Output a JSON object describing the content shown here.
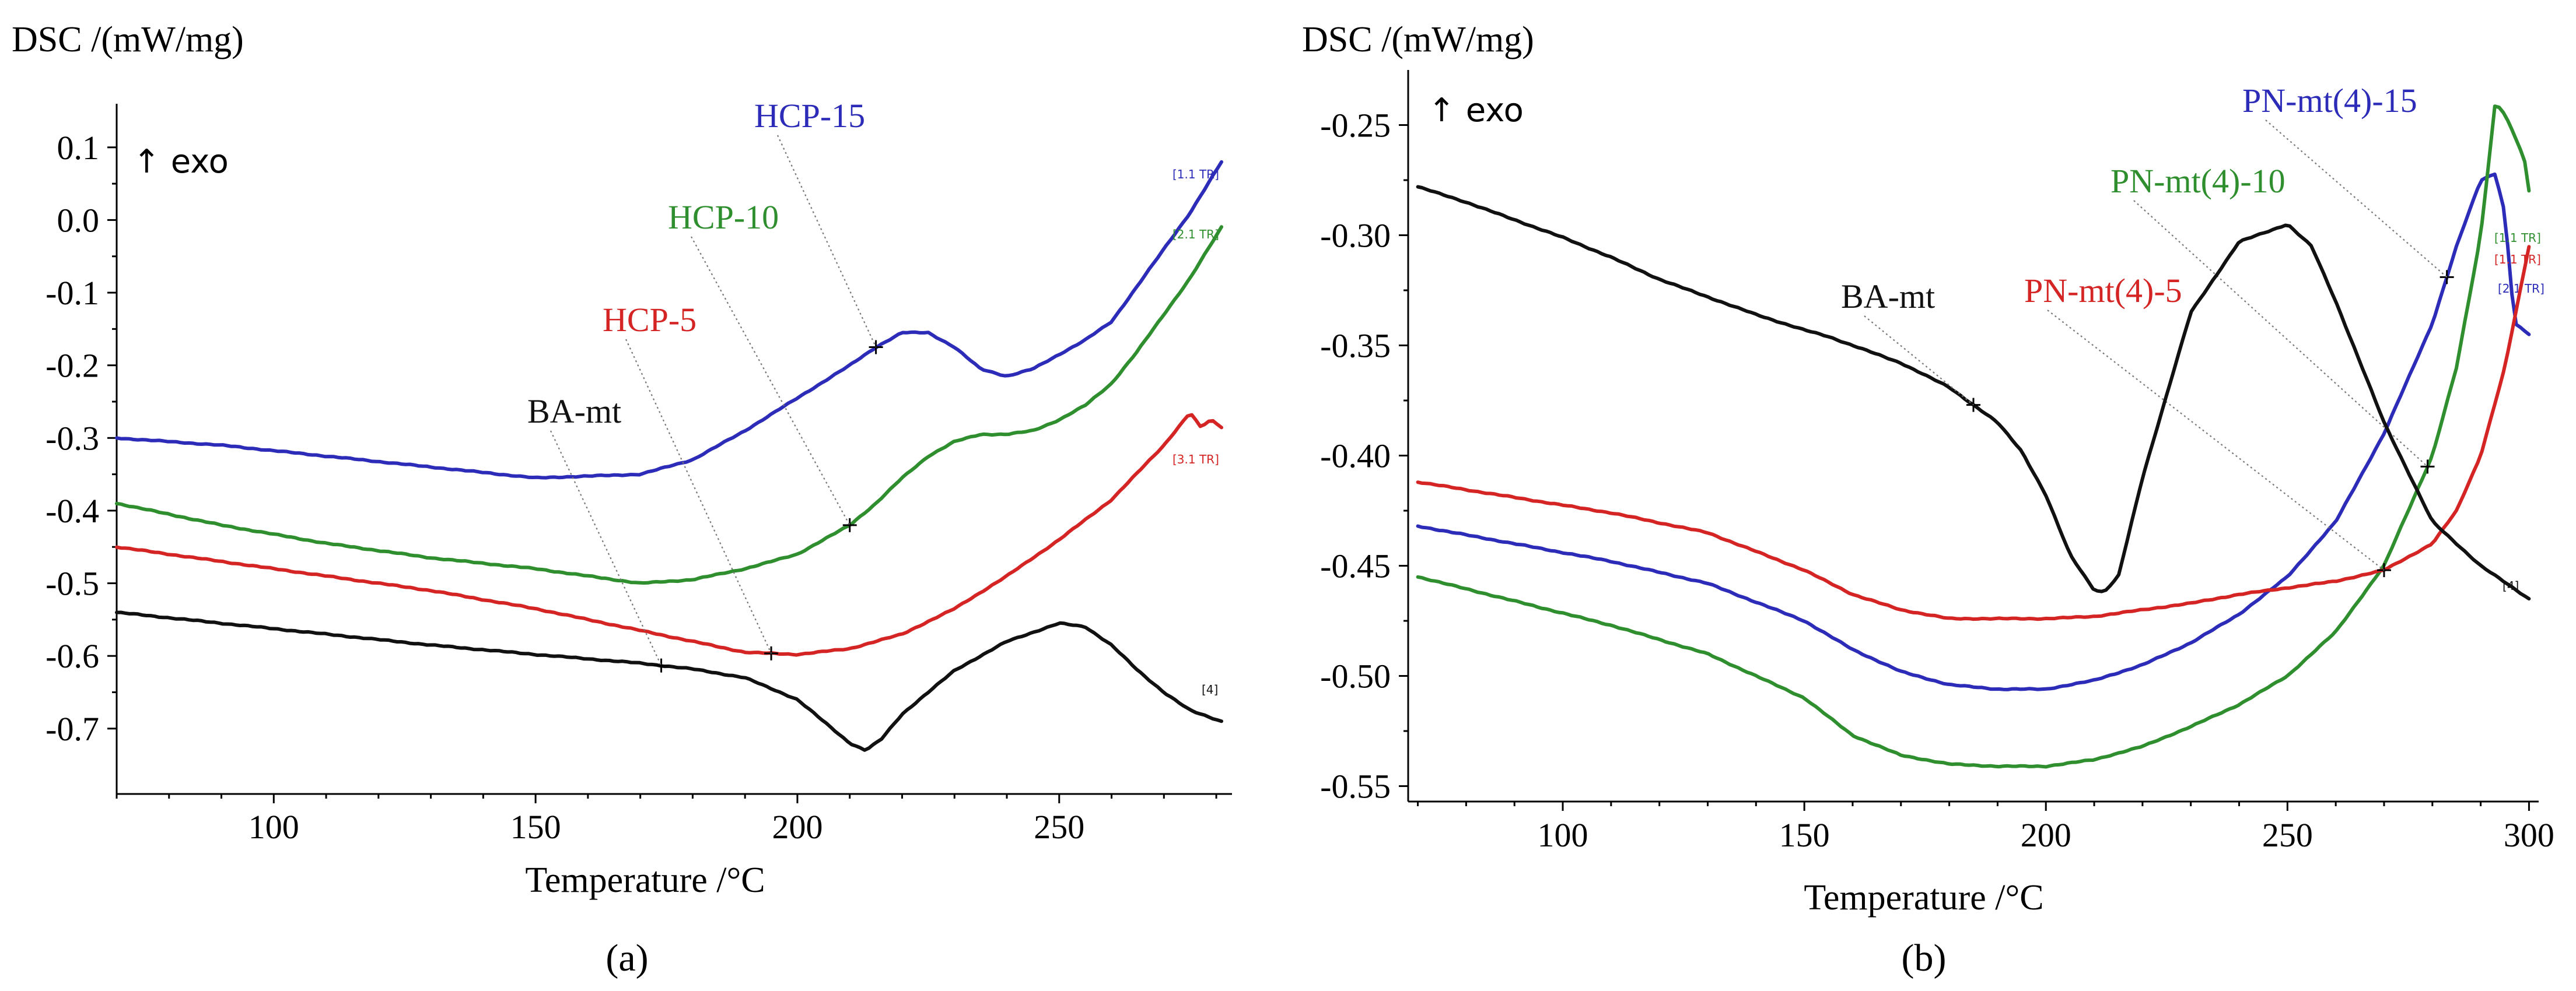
{
  "chart_data": [
    {
      "type": "line",
      "panel": "(a)",
      "ylabel_text": "DSC /(mW/mg)",
      "xlabel": "Temperature /°C",
      "exo_label": "↑ exo",
      "xlim": [
        70,
        283
      ],
      "ylim": [
        -0.79,
        0.16
      ],
      "xticks": [
        100,
        150,
        200,
        250
      ],
      "yticks": [
        0.1,
        0.0,
        -0.1,
        -0.2,
        -0.3,
        -0.4,
        -0.5,
        -0.6,
        -0.7
      ],
      "xtick_labels": [
        "100",
        "150",
        "200",
        "250"
      ],
      "ytick_labels": [
        "0.1",
        "0.0",
        "-0.1",
        "-0.2",
        "-0.3",
        "-0.4",
        "-0.5",
        "-0.6",
        "-0.7"
      ],
      "series": [
        {
          "name": "HCP-15",
          "color": "#2c2cb8",
          "end_tag": "[1.1 TR]",
          "x": [
            70,
            90,
            110,
            130,
            150,
            170,
            180,
            190,
            200,
            210,
            215,
            220,
            225,
            230,
            235,
            240,
            245,
            250,
            255,
            260,
            265,
            270,
            275,
            281
          ],
          "y": [
            -0.3,
            -0.31,
            -0.325,
            -0.34,
            -0.355,
            -0.35,
            -0.33,
            -0.29,
            -0.245,
            -0.2,
            -0.175,
            -0.155,
            -0.155,
            -0.175,
            -0.205,
            -0.215,
            -0.205,
            -0.185,
            -0.165,
            -0.14,
            -0.09,
            -0.04,
            0.01,
            0.08
          ],
          "marker_x": 215
        },
        {
          "name": "HCP-10",
          "color": "#2f8f2f",
          "end_tag": "[2.1 TR]",
          "x": [
            70,
            90,
            110,
            130,
            150,
            170,
            180,
            190,
            200,
            210,
            215,
            220,
            225,
            230,
            235,
            240,
            245,
            250,
            255,
            260,
            265,
            270,
            275,
            281
          ],
          "y": [
            -0.39,
            -0.42,
            -0.445,
            -0.465,
            -0.48,
            -0.5,
            -0.495,
            -0.48,
            -0.46,
            -0.42,
            -0.39,
            -0.355,
            -0.325,
            -0.305,
            -0.295,
            -0.295,
            -0.29,
            -0.275,
            -0.255,
            -0.225,
            -0.18,
            -0.13,
            -0.08,
            -0.01
          ],
          "marker_x": 210
        },
        {
          "name": "HCP-5",
          "color": "#d42424",
          "end_tag": "[3.1 TR]",
          "x": [
            70,
            90,
            110,
            130,
            150,
            170,
            180,
            190,
            200,
            210,
            220,
            230,
            240,
            250,
            260,
            270,
            275,
            277,
            279,
            281
          ],
          "y": [
            -0.45,
            -0.47,
            -0.49,
            -0.51,
            -0.535,
            -0.565,
            -0.58,
            -0.595,
            -0.598,
            -0.59,
            -0.57,
            -0.535,
            -0.49,
            -0.44,
            -0.385,
            -0.31,
            -0.265,
            -0.285,
            -0.275,
            -0.285
          ],
          "marker_x": 195
        },
        {
          "name": "BA-mt",
          "color": "#111111",
          "end_tag": "[4]",
          "x": [
            70,
            90,
            110,
            130,
            150,
            170,
            180,
            190,
            200,
            205,
            210,
            213,
            216,
            220,
            230,
            240,
            250,
            255,
            260,
            265,
            270,
            275,
            281
          ],
          "y": [
            -0.54,
            -0.555,
            -0.57,
            -0.585,
            -0.598,
            -0.61,
            -0.618,
            -0.63,
            -0.66,
            -0.69,
            -0.72,
            -0.73,
            -0.715,
            -0.68,
            -0.62,
            -0.58,
            -0.555,
            -0.56,
            -0.585,
            -0.62,
            -0.65,
            -0.675,
            -0.69
          ],
          "marker_x": 174
        }
      ]
    },
    {
      "type": "line",
      "panel": "(b)",
      "ylabel_text": "DSC /(mW/mg)",
      "xlabel": "Temperature /°C",
      "exo_label": "↑ exo",
      "xlim": [
        68,
        302
      ],
      "ylim": [
        -0.557,
        -0.225
      ],
      "xticks": [
        100,
        150,
        200,
        250,
        300
      ],
      "yticks": [
        -0.25,
        -0.3,
        -0.35,
        -0.4,
        -0.45,
        -0.5,
        -0.55
      ],
      "xtick_labels": [
        "100",
        "150",
        "200",
        "250",
        "300"
      ],
      "ytick_labels": [
        "-0.25",
        "-0.30",
        "-0.35",
        "-0.40",
        "-0.45",
        "-0.50",
        "-0.55"
      ],
      "series": [
        {
          "name": "PN-mt(4)-15",
          "color": "#2c2cb8",
          "end_tag": "[2.1 TR]",
          "x": [
            70,
            90,
            110,
            130,
            150,
            160,
            170,
            180,
            190,
            200,
            210,
            220,
            230,
            240,
            250,
            260,
            270,
            280,
            285,
            290,
            293,
            295,
            297,
            300
          ],
          "y": [
            -0.432,
            -0.44,
            -0.448,
            -0.458,
            -0.475,
            -0.488,
            -0.498,
            -0.504,
            -0.506,
            -0.506,
            -0.502,
            -0.495,
            -0.485,
            -0.472,
            -0.455,
            -0.43,
            -0.39,
            -0.34,
            -0.305,
            -0.275,
            -0.272,
            -0.29,
            -0.34,
            -0.345
          ],
          "marker_x": 283
        },
        {
          "name": "PN-mt(4)-10",
          "color": "#2f8f2f",
          "end_tag": "[1.1 TR]",
          "x": [
            70,
            90,
            110,
            130,
            150,
            160,
            170,
            180,
            190,
            200,
            210,
            220,
            230,
            240,
            250,
            260,
            270,
            280,
            285,
            290,
            293,
            295,
            297,
            299,
            300
          ],
          "y": [
            -0.455,
            -0.466,
            -0.477,
            -0.49,
            -0.51,
            -0.527,
            -0.536,
            -0.54,
            -0.541,
            -0.541,
            -0.538,
            -0.532,
            -0.523,
            -0.513,
            -0.5,
            -0.48,
            -0.45,
            -0.4,
            -0.36,
            -0.3,
            -0.24,
            -0.245,
            -0.255,
            -0.265,
            -0.28
          ],
          "marker_x": 279
        },
        {
          "name": "PN-mt(4)-5",
          "color": "#d42424",
          "end_tag": "[1.1 TR]",
          "x": [
            70,
            90,
            110,
            130,
            150,
            160,
            170,
            180,
            190,
            200,
            210,
            220,
            230,
            240,
            250,
            260,
            270,
            280,
            285,
            290,
            295,
            300
          ],
          "y": [
            -0.412,
            -0.419,
            -0.426,
            -0.435,
            -0.452,
            -0.463,
            -0.47,
            -0.474,
            -0.474,
            -0.474,
            -0.473,
            -0.47,
            -0.467,
            -0.463,
            -0.46,
            -0.457,
            -0.452,
            -0.44,
            -0.425,
            -0.4,
            -0.36,
            -0.305
          ],
          "marker_x": 270
        },
        {
          "name": "BA-mt",
          "color": "#111111",
          "end_tag": "[4]",
          "x": [
            70,
            80,
            90,
            100,
            110,
            120,
            130,
            140,
            150,
            155,
            160,
            170,
            180,
            190,
            195,
            200,
            205,
            210,
            212,
            215,
            220,
            230,
            240,
            250,
            255,
            260,
            270,
            280,
            290,
            300
          ],
          "y": [
            -0.278,
            -0.285,
            -0.293,
            -0.301,
            -0.31,
            -0.32,
            -0.328,
            -0.336,
            -0.343,
            -0.346,
            -0.35,
            -0.358,
            -0.369,
            -0.385,
            -0.398,
            -0.418,
            -0.445,
            -0.461,
            -0.462,
            -0.455,
            -0.41,
            -0.335,
            -0.303,
            -0.295,
            -0.305,
            -0.33,
            -0.385,
            -0.43,
            -0.45,
            -0.465
          ],
          "marker_x": 185
        }
      ]
    }
  ]
}
